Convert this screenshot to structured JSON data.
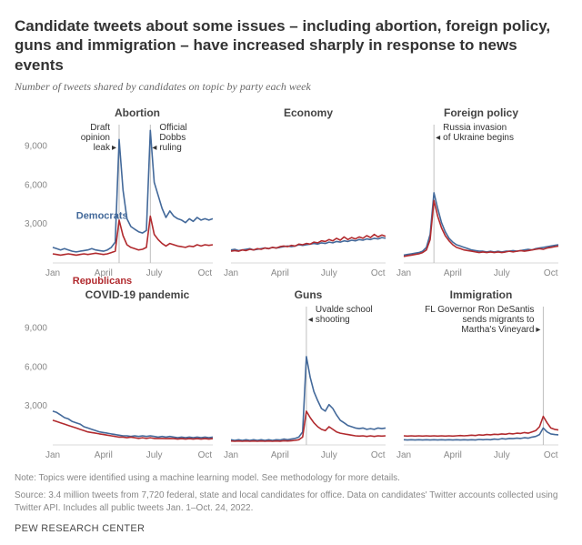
{
  "title": "Candidate tweets about some issues – including abortion, foreign policy, guns and immigration – have increased sharply in response to news events",
  "subtitle": "Number of tweets shared by candidates on topic by party each week",
  "colors": {
    "dem": "#43699a",
    "rep": "#b12a2e",
    "grid": "#d9d9d9",
    "ref_line": "#bfbfbf",
    "text": "#333333",
    "muted": "#888888",
    "bg": "#ffffff"
  },
  "party_labels": {
    "dem": "Democrats",
    "rep": "Republicans"
  },
  "y_axis": {
    "ymin": 0,
    "ymax": 10500,
    "ticks": [
      3000,
      6000,
      9000
    ],
    "tick_labels": [
      "3,000",
      "6,000",
      "9,000"
    ]
  },
  "x_axis": {
    "n_weeks": 42,
    "ticks": [
      0,
      13,
      26,
      39
    ],
    "tick_labels": [
      "Jan",
      "April",
      "July",
      "Oct"
    ]
  },
  "line_width": 1.6,
  "panels": [
    {
      "key": "abortion",
      "title": "Abortion",
      "show_y_axis": true,
      "annotations": [
        {
          "label": "Draft\nopinion\nleak",
          "week": 17,
          "side": "left",
          "arrow": "right"
        },
        {
          "label": "Official\nDobbs\nruling",
          "week": 25,
          "side": "right",
          "arrow": "left"
        }
      ],
      "ref_lines": [
        17,
        25
      ],
      "show_party_labels": true,
      "dem": [
        1200,
        1100,
        1000,
        1100,
        1000,
        900,
        850,
        900,
        950,
        1000,
        1100,
        1000,
        950,
        900,
        1000,
        1200,
        1600,
        9500,
        5600,
        3400,
        2800,
        2600,
        2400,
        2300,
        2500,
        10200,
        6200,
        5200,
        4200,
        3500,
        4000,
        3600,
        3400,
        3300,
        3100,
        3400,
        3200,
        3500,
        3300,
        3400,
        3300,
        3400
      ],
      "rep": [
        700,
        650,
        600,
        650,
        700,
        650,
        600,
        650,
        700,
        650,
        700,
        750,
        700,
        650,
        700,
        800,
        900,
        3300,
        2100,
        1400,
        1200,
        1100,
        1000,
        1050,
        1200,
        3600,
        2200,
        1800,
        1500,
        1300,
        1500,
        1400,
        1300,
        1250,
        1200,
        1300,
        1250,
        1400,
        1300,
        1400,
        1350,
        1400
      ]
    },
    {
      "key": "economy",
      "title": "Economy",
      "show_y_axis": false,
      "annotations": [],
      "ref_lines": [],
      "dem": [
        1000,
        1050,
        950,
        1000,
        1050,
        1100,
        1000,
        1050,
        1100,
        1150,
        1100,
        1200,
        1150,
        1200,
        1250,
        1300,
        1250,
        1300,
        1400,
        1350,
        1400,
        1450,
        1500,
        1450,
        1550,
        1500,
        1600,
        1550,
        1650,
        1600,
        1700,
        1650,
        1750,
        1700,
        1800,
        1750,
        1850,
        1800,
        1900,
        1850,
        1950,
        1900
      ],
      "rep": [
        900,
        950,
        900,
        1000,
        950,
        1050,
        1000,
        1100,
        1050,
        1150,
        1100,
        1200,
        1150,
        1250,
        1300,
        1250,
        1350,
        1300,
        1450,
        1400,
        1500,
        1450,
        1600,
        1550,
        1700,
        1650,
        1800,
        1700,
        1900,
        1750,
        2000,
        1800,
        1950,
        1850,
        2000,
        1900,
        2100,
        1950,
        2200,
        2000,
        2150,
        2050
      ]
    },
    {
      "key": "foreign",
      "title": "Foreign policy",
      "show_y_axis": false,
      "annotations": [
        {
          "label": "Russia invasion\nof Ukraine begins",
          "week": 8,
          "side": "right",
          "arrow": "left"
        }
      ],
      "ref_lines": [
        8
      ],
      "dem": [
        600,
        650,
        700,
        750,
        800,
        900,
        1200,
        2200,
        5400,
        4200,
        3100,
        2400,
        1900,
        1600,
        1400,
        1300,
        1200,
        1100,
        1000,
        950,
        900,
        900,
        850,
        900,
        850,
        900,
        850,
        900,
        900,
        950,
        900,
        950,
        1000,
        1050,
        1000,
        1100,
        1150,
        1200,
        1250,
        1300,
        1350,
        1400
      ],
      "rep": [
        500,
        550,
        600,
        650,
        700,
        800,
        1000,
        1800,
        4800,
        3600,
        2700,
        2100,
        1700,
        1400,
        1200,
        1100,
        1000,
        950,
        900,
        850,
        800,
        850,
        800,
        850,
        800,
        850,
        800,
        850,
        900,
        850,
        900,
        950,
        900,
        950,
        1000,
        1050,
        1100,
        1050,
        1150,
        1200,
        1250,
        1300
      ]
    },
    {
      "key": "covid",
      "title": "COVID-19 pandemic",
      "show_y_axis": true,
      "annotations": [],
      "ref_lines": [],
      "dem": [
        2600,
        2500,
        2300,
        2100,
        2000,
        1800,
        1700,
        1600,
        1400,
        1300,
        1200,
        1100,
        1000,
        950,
        900,
        850,
        800,
        750,
        700,
        700,
        650,
        700,
        650,
        700,
        650,
        700,
        650,
        600,
        650,
        600,
        650,
        600,
        550,
        600,
        550,
        600,
        550,
        600,
        550,
        600,
        550,
        600
      ],
      "rep": [
        1900,
        1800,
        1700,
        1600,
        1500,
        1400,
        1300,
        1200,
        1100,
        1000,
        950,
        900,
        850,
        800,
        750,
        700,
        650,
        600,
        600,
        550,
        600,
        550,
        500,
        550,
        500,
        550,
        500,
        500,
        500,
        480,
        500,
        480,
        450,
        480,
        450,
        480,
        450,
        480,
        450,
        480,
        450,
        480
      ]
    },
    {
      "key": "guns",
      "title": "Guns",
      "show_y_axis": false,
      "annotations": [
        {
          "label": "Uvalde school\nshooting",
          "week": 20,
          "side": "right",
          "arrow": "left"
        }
      ],
      "ref_lines": [
        20
      ],
      "dem": [
        400,
        350,
        400,
        350,
        400,
        350,
        400,
        350,
        400,
        350,
        400,
        350,
        400,
        380,
        450,
        400,
        450,
        500,
        600,
        1000,
        6800,
        5200,
        4100,
        3400,
        2800,
        2600,
        3100,
        2800,
        2300,
        1900,
        1700,
        1500,
        1400,
        1300,
        1250,
        1300,
        1200,
        1250,
        1200,
        1300,
        1250,
        1300
      ],
      "rep": [
        300,
        280,
        300,
        280,
        300,
        280,
        300,
        280,
        300,
        280,
        300,
        280,
        300,
        290,
        320,
        300,
        320,
        350,
        400,
        600,
        2600,
        2100,
        1700,
        1400,
        1200,
        1100,
        1400,
        1200,
        1000,
        900,
        850,
        800,
        750,
        700,
        680,
        700,
        650,
        700,
        650,
        700,
        680,
        700
      ]
    },
    {
      "key": "immigration",
      "title": "Immigration",
      "show_y_axis": false,
      "annotations": [
        {
          "label": "FL Governor Ron DeSantis\nsends migrants to\nMartha's Vineyard",
          "week": 37,
          "side": "left",
          "arrow": "right"
        }
      ],
      "ref_lines": [
        37
      ],
      "dem": [
        400,
        380,
        400,
        380,
        400,
        380,
        400,
        380,
        400,
        380,
        400,
        380,
        400,
        380,
        400,
        380,
        400,
        380,
        400,
        380,
        420,
        400,
        420,
        400,
        450,
        420,
        480,
        450,
        500,
        480,
        520,
        500,
        550,
        520,
        600,
        650,
        800,
        1300,
        1000,
        850,
        800,
        780
      ],
      "rep": [
        700,
        680,
        700,
        680,
        700,
        680,
        700,
        680,
        700,
        680,
        700,
        680,
        700,
        680,
        700,
        720,
        700,
        720,
        750,
        720,
        780,
        750,
        800,
        780,
        820,
        800,
        850,
        820,
        880,
        850,
        900,
        880,
        950,
        900,
        1000,
        1100,
        1400,
        2200,
        1700,
        1300,
        1200,
        1150
      ]
    }
  ],
  "note": "Note: Topics were identified using a machine learning model. See methodology for more details.",
  "source": "Source: 3.4 million tweets from 7,720 federal, state and local candidates for office. Data on candidates' Twitter accounts collected using Twitter API. Includes all public tweets Jan. 1–Oct. 24, 2022.",
  "footer": "PEW RESEARCH CENTER"
}
